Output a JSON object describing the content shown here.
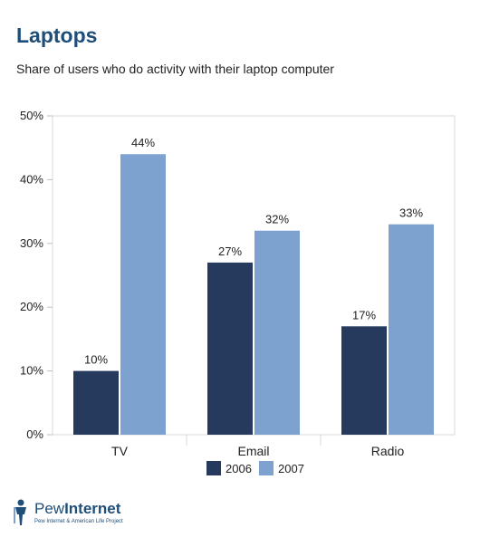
{
  "title": "Laptops",
  "subtitle": "Share of users who do activity with their laptop computer",
  "logo": {
    "name_a": "Pew",
    "name_b": "Internet",
    "tagline": "Pew Internet & American Life Project"
  },
  "chart_data": {
    "type": "bar",
    "categories": [
      "TV",
      "Email",
      "Radio"
    ],
    "series": [
      {
        "name": "2006",
        "values": [
          10,
          27,
          17
        ],
        "labels": [
          "10%",
          "27%",
          "17%"
        ],
        "color": "#253a5c"
      },
      {
        "name": "2007",
        "values": [
          44,
          32,
          33
        ],
        "labels": [
          "44%",
          "32%",
          "33%"
        ],
        "color": "#7ea2cf"
      }
    ],
    "yticks": [
      0,
      10,
      20,
      30,
      40,
      50
    ],
    "ytick_labels": [
      "0%",
      "10%",
      "20%",
      "30%",
      "40%",
      "50%"
    ],
    "ylim": [
      0,
      50
    ],
    "grid": false,
    "legend": "bottom-center"
  }
}
